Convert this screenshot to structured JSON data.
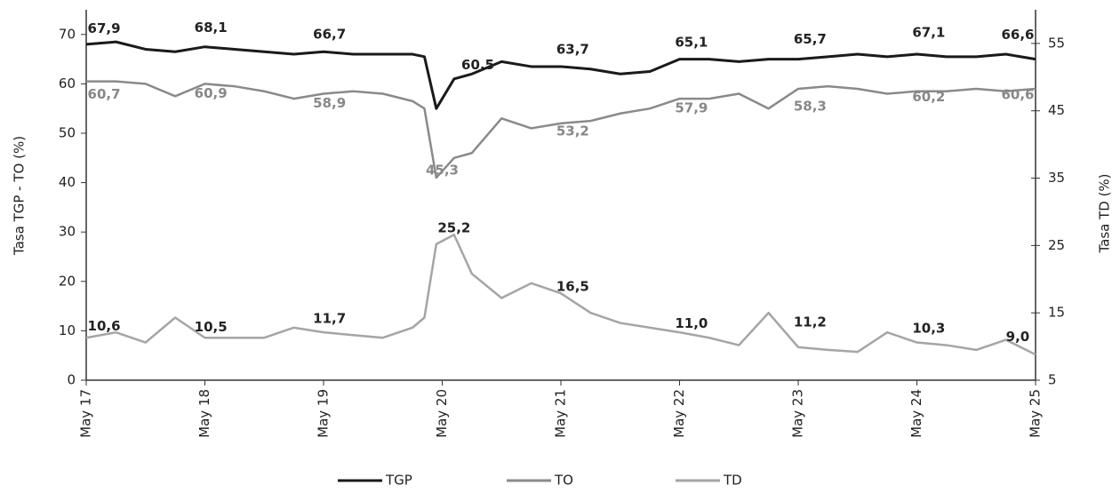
{
  "chart_data": {
    "type": "line",
    "y_label": "Tasa TGP - TO (%)",
    "y2_label": "Tasa TD (%)",
    "x": [
      17,
      17.25,
      17.5,
      17.75,
      18,
      18.25,
      18.5,
      18.75,
      19,
      19.25,
      19.5,
      19.75,
      19.85,
      19.95,
      20.1,
      20.25,
      20.5,
      20.75,
      21,
      21.25,
      21.5,
      21.75,
      22,
      22.25,
      22.5,
      22.75,
      23,
      23.25,
      23.5,
      23.75,
      24,
      24.25,
      24.5,
      24.75,
      25
    ],
    "xlim": [
      17,
      25
    ],
    "xticks": [
      {
        "value": 17,
        "label": "May 17"
      },
      {
        "value": 18,
        "label": "May 18"
      },
      {
        "value": 19,
        "label": "May 19"
      },
      {
        "value": 20,
        "label": "May 20"
      },
      {
        "value": 21,
        "label": "May 21"
      },
      {
        "value": 22,
        "label": "May 22"
      },
      {
        "value": 23,
        "label": "May 23"
      },
      {
        "value": 24,
        "label": "May 24"
      },
      {
        "value": 25,
        "label": "May 25"
      }
    ],
    "ylim": [
      0,
      75
    ],
    "yticks": [
      0,
      10,
      20,
      30,
      40,
      50,
      60,
      70
    ],
    "y2lim": [
      5,
      60
    ],
    "y2ticks": [
      5,
      15,
      25,
      35,
      45,
      55
    ],
    "legend": "bottom",
    "series": [
      {
        "name": "TGP",
        "color": "#1a1a1a",
        "values": [
          68,
          68.5,
          67,
          66.5,
          67.5,
          67,
          66.5,
          66,
          66.5,
          66,
          66,
          66,
          65.5,
          55,
          61,
          62,
          64.5,
          63.5,
          63.5,
          63,
          62,
          62.5,
          65,
          65,
          64.5,
          65,
          65,
          65.5,
          66,
          65.5,
          66,
          65.5,
          65.5,
          66,
          65
        ],
        "point_labels": [
          {
            "x": 17.15,
            "value": 67.9,
            "label": "67,9"
          },
          {
            "x": 18.05,
            "value": 68.1,
            "label": "68,1"
          },
          {
            "x": 19.05,
            "value": 66.7,
            "label": "66,7"
          },
          {
            "x": 20.3,
            "value": 60.5,
            "label": "60,5"
          },
          {
            "x": 21.1,
            "value": 63.7,
            "label": "63,7"
          },
          {
            "x": 22.1,
            "value": 65.1,
            "label": "65,1"
          },
          {
            "x": 23.1,
            "value": 65.7,
            "label": "65,7"
          },
          {
            "x": 24.1,
            "value": 67.1,
            "label": "67,1"
          },
          {
            "x": 24.85,
            "value": 66.6,
            "label": "66,6"
          }
        ]
      },
      {
        "name": "TO",
        "color": "#8a8a8a",
        "values": [
          60.5,
          60.5,
          60,
          57.5,
          60,
          59.5,
          58.5,
          57,
          58,
          58.5,
          58,
          56.5,
          55,
          41,
          45,
          46,
          53,
          51,
          52,
          52.5,
          54,
          55,
          57,
          57,
          58,
          55,
          59,
          59.5,
          59,
          58,
          58.5,
          58.5,
          59,
          58.5,
          59
        ],
        "point_labels": [
          {
            "x": 17.15,
            "value": 60.7,
            "label": "60,7"
          },
          {
            "x": 18.05,
            "value": 60.9,
            "label": "60,9"
          },
          {
            "x": 19.05,
            "value": 58.9,
            "label": "58,9"
          },
          {
            "x": 20.0,
            "value": 45.3,
            "label": "45,3"
          },
          {
            "x": 21.1,
            "value": 53.2,
            "label": "53,2"
          },
          {
            "x": 22.1,
            "value": 57.9,
            "label": "57,9"
          },
          {
            "x": 23.1,
            "value": 58.3,
            "label": "58,3"
          },
          {
            "x": 24.1,
            "value": 60.2,
            "label": "60,2"
          },
          {
            "x": 24.85,
            "value": 60.6,
            "label": "60,6"
          }
        ]
      },
      {
        "name": "TD",
        "color": "#a5a5a5",
        "axis": "y2",
        "values": [
          11.3,
          12.1,
          10.6,
          14.3,
          11.3,
          11.3,
          11.3,
          12.8,
          12.1,
          11.7,
          11.3,
          12.8,
          14.3,
          25.2,
          26.6,
          20.8,
          17.2,
          19.4,
          17.9,
          15,
          13.5,
          12.8,
          12.1,
          11.3,
          10.2,
          15,
          9.9,
          9.5,
          9.2,
          12.1,
          10.6,
          10.2,
          9.5,
          11,
          8.8
        ],
        "point_labels": [
          {
            "x": 17.15,
            "value": 10.6,
            "label": "10,6"
          },
          {
            "x": 18.05,
            "value": 10.5,
            "label": "10,5"
          },
          {
            "x": 19.05,
            "value": 11.7,
            "label": "11,7"
          },
          {
            "x": 20.1,
            "value": 25.2,
            "label": "25,2"
          },
          {
            "x": 21.1,
            "value": 16.5,
            "label": "16,5"
          },
          {
            "x": 22.1,
            "value": 11.0,
            "label": "11,0"
          },
          {
            "x": 23.1,
            "value": 11.2,
            "label": "11,2"
          },
          {
            "x": 24.1,
            "value": 10.3,
            "label": "10,3"
          },
          {
            "x": 24.85,
            "value": 9.0,
            "label": "9,0"
          }
        ]
      }
    ]
  }
}
